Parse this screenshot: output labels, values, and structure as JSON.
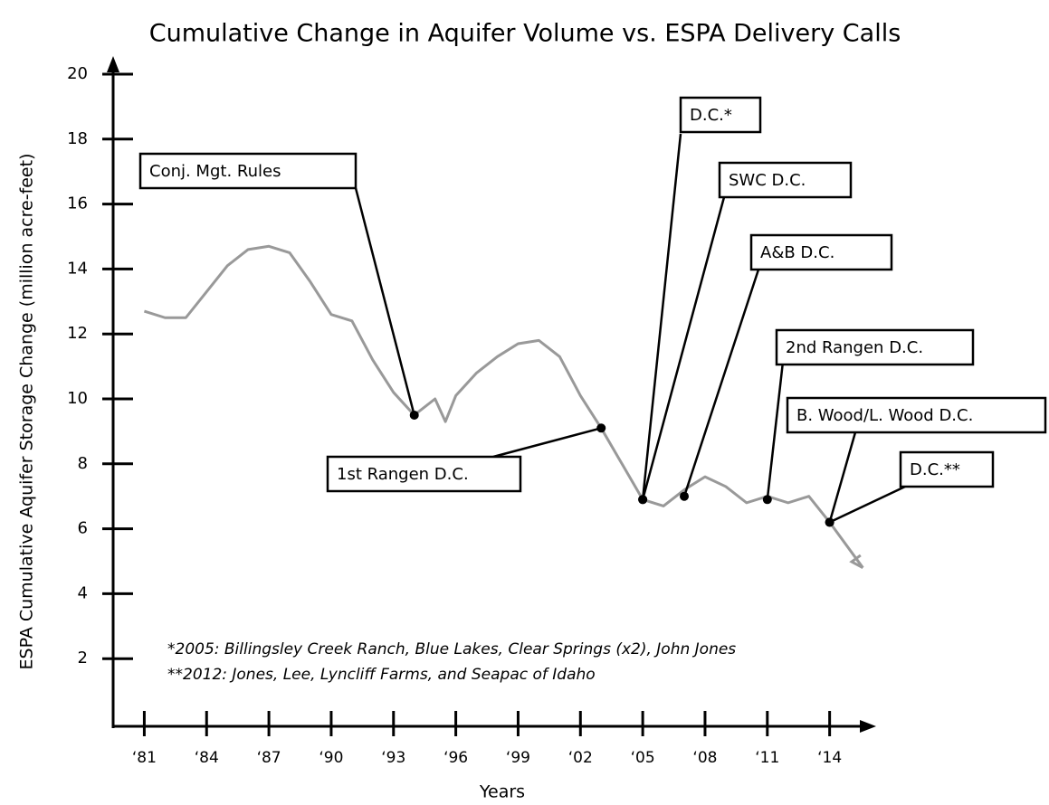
{
  "chart_data": {
    "type": "line",
    "title": "Cumulative Change in Aquifer Volume vs. ESPA Delivery Calls",
    "y_label": "ESPA Cumulative Aquifer Storage Change (million acre-feet)",
    "x_label": "Years",
    "x": [
      1981,
      1982,
      1983,
      1984,
      1985,
      1986,
      1987,
      1988,
      1989,
      1990,
      1991,
      1992,
      1993,
      1994,
      1995,
      1995.5,
      1996,
      1997,
      1998,
      1999,
      2000,
      2001,
      2002,
      2003,
      2004,
      2005,
      2006,
      2007,
      2008,
      2009,
      2010,
      2011,
      2012,
      2013,
      2014,
      2015.6
    ],
    "series": [
      {
        "color": "#999999",
        "values": [
          12.7,
          12.5,
          12.5,
          13.3,
          14.1,
          14.6,
          14.7,
          14.5,
          13.6,
          12.6,
          12.4,
          11.2,
          10.2,
          9.5,
          10.0,
          9.3,
          10.1,
          10.8,
          11.3,
          11.7,
          11.8,
          11.3,
          10.1,
          9.1,
          8.0,
          6.9,
          6.7,
          7.2,
          7.6,
          7.3,
          6.8,
          7.0,
          6.8,
          7.0,
          6.2,
          4.8
        ]
      }
    ],
    "xlim": [
      1979.5,
      2016.5
    ],
    "ylim": [
      0,
      20
    ],
    "yticks": [
      2,
      4,
      6,
      8,
      10,
      12,
      14,
      16,
      18,
      20
    ],
    "xticks": [
      {
        "value": 1981,
        "label": "‘81"
      },
      {
        "value": 1984,
        "label": "‘84"
      },
      {
        "value": 1987,
        "label": "‘87"
      },
      {
        "value": 1990,
        "label": "‘90"
      },
      {
        "value": 1993,
        "label": "‘93"
      },
      {
        "value": 1996,
        "label": "‘96"
      },
      {
        "value": 1999,
        "label": "‘99"
      },
      {
        "value": 2002,
        "label": "‘02"
      },
      {
        "value": 2005,
        "label": "‘05"
      },
      {
        "value": 2008,
        "label": "‘08"
      },
      {
        "value": 2011,
        "label": "‘11"
      },
      {
        "value": 2014,
        "label": "‘14"
      }
    ],
    "annotations": [
      {
        "label": "Conj. Mgt. Rules",
        "x": 1994,
        "y": 9.5
      },
      {
        "label": "1st Rangen D.C.",
        "x": 2003,
        "y": 9.1
      },
      {
        "label": "D.C.*",
        "x": 2005,
        "y": 6.9
      },
      {
        "label": "SWC D.C.",
        "x": 2005,
        "y": 6.9
      },
      {
        "label": "A&B D.C.",
        "x": 2007,
        "y": 7.0
      },
      {
        "label": "2nd Rangen D.C.",
        "x": 2011,
        "y": 6.9
      },
      {
        "label": "B. Wood/L. Wood D.C.",
        "x": 2014,
        "y": 6.2
      },
      {
        "label": "D.C.**",
        "x": 2014,
        "y": 6.2
      }
    ],
    "notes": [
      "*2005: Billingsley Creek Ranch, Blue Lakes, Clear Springs (x2), John Jones",
      "**2012: Jones, Lee, Lyncliff Farms, and Seapac of Idaho"
    ]
  }
}
